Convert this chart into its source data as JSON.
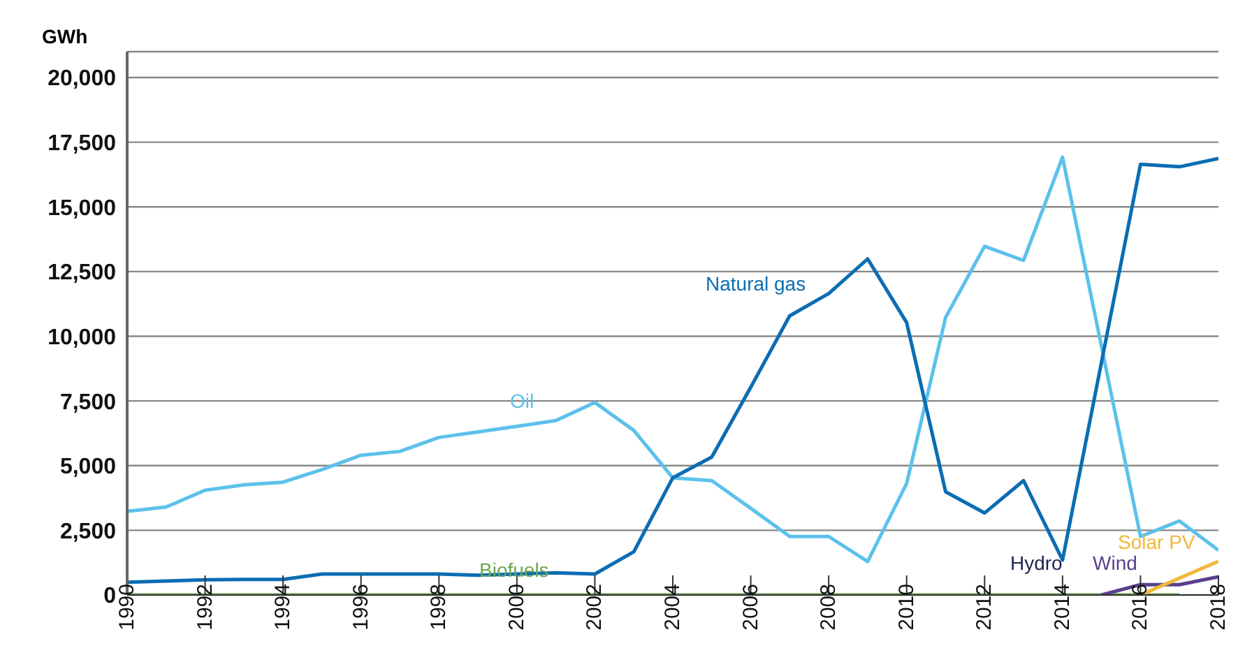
{
  "chart_data": {
    "type": "line",
    "ylabel": "GWh",
    "x": [
      1990,
      1991,
      1992,
      1993,
      1994,
      1995,
      1996,
      1997,
      1998,
      1999,
      2000,
      2001,
      2002,
      2003,
      2004,
      2005,
      2006,
      2007,
      2008,
      2009,
      2010,
      2011,
      2012,
      2013,
      2014,
      2015,
      2016,
      2017,
      2018
    ],
    "series": [
      {
        "name": "Oil",
        "color": "#5cc1eb",
        "values": [
          3230,
          3400,
          4050,
          4260,
          4360,
          4850,
          5400,
          5550,
          6090,
          6300,
          6520,
          6740,
          7440,
          6360,
          4530,
          4420,
          3350,
          2260,
          2260,
          1290,
          4310,
          10730,
          13480,
          12930,
          16920,
          9600,
          2260,
          2860,
          1730
        ]
      },
      {
        "name": "Natural gas",
        "color": "#0b6db3",
        "values": [
          490,
          540,
          590,
          600,
          600,
          810,
          810,
          810,
          810,
          760,
          810,
          860,
          810,
          1670,
          4530,
          5330,
          8030,
          10790,
          11650,
          12990,
          10530,
          3990,
          3170,
          4420,
          1350,
          9000,
          16650,
          16550,
          16870
        ]
      },
      {
        "name": "Biofuels",
        "color": "#6aa84f",
        "values": [
          0,
          0,
          0,
          0,
          0,
          0,
          0,
          0,
          0,
          0,
          0,
          0,
          0,
          0,
          0,
          0,
          0,
          0,
          0,
          0,
          0,
          0,
          0,
          0,
          0,
          0,
          0,
          0,
          null
        ]
      },
      {
        "name": "Wind",
        "color": "#5b3f8c",
        "values": [
          null,
          null,
          null,
          null,
          null,
          null,
          null,
          null,
          null,
          null,
          null,
          null,
          null,
          null,
          null,
          null,
          null,
          null,
          null,
          null,
          null,
          null,
          null,
          null,
          null,
          0,
          400,
          400,
          700
        ]
      },
      {
        "name": "Solar PV",
        "color": "#f0b93c",
        "values": [
          null,
          null,
          null,
          null,
          null,
          null,
          null,
          null,
          null,
          null,
          null,
          null,
          null,
          null,
          null,
          null,
          null,
          null,
          null,
          null,
          null,
          null,
          null,
          null,
          null,
          null,
          0,
          650,
          1300
        ]
      }
    ],
    "annotations": [
      "Hydro"
    ],
    "xlim": [
      1990,
      2018
    ],
    "xticks": [
      1990,
      1992,
      1994,
      1996,
      1998,
      2000,
      2002,
      2004,
      2006,
      2008,
      2010,
      2012,
      2014,
      2016,
      2018
    ],
    "ylim": [
      0,
      21000
    ],
    "yticks": [
      0,
      {
        "value": 2500,
        "label": "2,500"
      },
      {
        "value": 5000,
        "label": "5,000"
      },
      {
        "value": 7500,
        "label": "7,500"
      },
      {
        "value": 10000,
        "label": "10,000"
      },
      {
        "value": 12500,
        "label": "12,500"
      },
      {
        "value": 15000,
        "label": "15,000"
      },
      {
        "value": 17500,
        "label": "17,500"
      },
      {
        "value": 20000,
        "label": "20,000"
      }
    ],
    "grid": "y",
    "legend": false,
    "marker": "none",
    "line_style": "solid"
  }
}
